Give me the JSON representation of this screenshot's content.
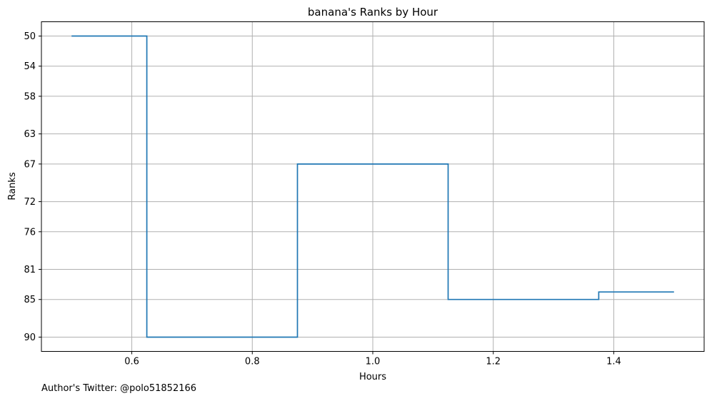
{
  "chart_data": {
    "type": "line",
    "style": "step",
    "title": "banana's Ranks by Hour",
    "xlabel": "Hours",
    "ylabel": "Ranks",
    "xlim": [
      0.45,
      1.55
    ],
    "ylim": [
      91.9,
      48.1
    ],
    "y_inverted": true,
    "grid": true,
    "color": "#1f77b4",
    "x_ticks": [
      0.6,
      0.8,
      1.0,
      1.2,
      1.4
    ],
    "x_tick_labels": [
      "0.6",
      "0.8",
      "1.0",
      "1.2",
      "1.4"
    ],
    "y_ticks": [
      50,
      54,
      58,
      63,
      67,
      72,
      76,
      81,
      85,
      90
    ],
    "y_tick_labels": [
      "50",
      "54",
      "58",
      "63",
      "67",
      "72",
      "76",
      "81",
      "85",
      "90"
    ],
    "series": [
      {
        "x": [
          0.5,
          0.625,
          0.625,
          0.875,
          0.875,
          1.125,
          1.125,
          1.375,
          1.375,
          1.5
        ],
        "y": [
          50,
          50,
          90,
          90,
          67,
          67,
          85,
          85,
          84,
          84
        ]
      }
    ]
  },
  "footer": "Author's Twitter: @polo51852166"
}
